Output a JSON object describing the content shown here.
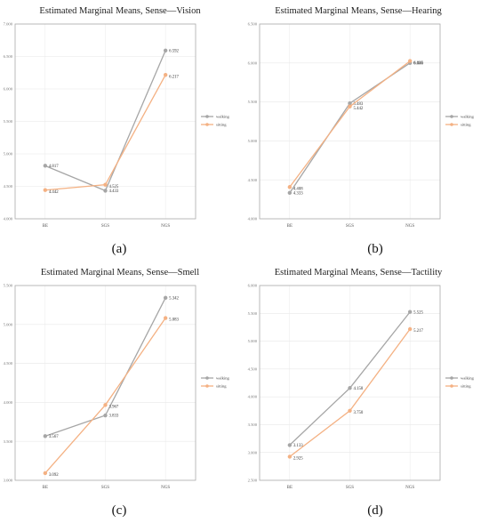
{
  "legend": {
    "series": [
      "walking",
      "sitting"
    ]
  },
  "colors": {
    "walking": "#a6a6a6",
    "sitting": "#f4b183",
    "frame": "#aaaaaa",
    "grid": "#e8e8e8"
  },
  "chart_data": [
    {
      "type": "line",
      "title": "Estimated Marginal Means, Sense—Vision",
      "caption": "(a)",
      "categories": [
        "BE",
        "SGS",
        "NGS"
      ],
      "ylim": [
        4.0,
        7.0
      ],
      "yticks": [
        "4.000",
        "4.500",
        "5.000",
        "5.500",
        "6.000",
        "6.500",
        "7.000"
      ],
      "grid": true,
      "legend_position": "right",
      "series": [
        {
          "name": "walking",
          "values": [
            4.817,
            4.433,
            6.592
          ],
          "labels": [
            "4.817",
            "4.433",
            "6.592"
          ]
        },
        {
          "name": "sitting",
          "values": [
            4.442,
            4.525,
            6.217
          ],
          "labels": [
            "4.442",
            "4.525",
            "6.217"
          ]
        }
      ]
    },
    {
      "type": "line",
      "title": "Estimated Marginal Means, Sense—Hearing",
      "caption": "(b)",
      "categories": [
        "BE",
        "SGS",
        "NGS"
      ],
      "ylim": [
        4.0,
        6.5
      ],
      "yticks": [
        "4.000",
        "4.500",
        "5.000",
        "5.500",
        "6.000",
        "6.500"
      ],
      "grid": true,
      "legend_position": "right",
      "series": [
        {
          "name": "walking",
          "values": [
            4.333,
            5.483,
            6.0
          ],
          "labels": [
            "4.333",
            "5.483",
            "6.000"
          ]
        },
        {
          "name": "sitting",
          "values": [
            4.408,
            5.442,
            6.025
          ],
          "labels": [
            "4.408",
            "5.442",
            "6.025"
          ]
        }
      ]
    },
    {
      "type": "line",
      "title": "Estimated Marginal Means, Sense—Smell",
      "caption": "(c)",
      "categories": [
        "BE",
        "SGS",
        "NGS"
      ],
      "ylim": [
        3.0,
        5.5
      ],
      "yticks": [
        "3.000",
        "3.500",
        "4.000",
        "4.500",
        "5.000",
        "5.500"
      ],
      "grid": true,
      "legend_position": "right",
      "series": [
        {
          "name": "walking",
          "values": [
            3.567,
            3.833,
            5.342
          ],
          "labels": [
            "3.567",
            "3.833",
            "5.342"
          ]
        },
        {
          "name": "sitting",
          "values": [
            3.092,
            3.967,
            5.083
          ],
          "labels": [
            "3.092",
            "3.967",
            "5.083"
          ]
        }
      ]
    },
    {
      "type": "line",
      "title": "Estimated Marginal Means, Sense—Tactility",
      "caption": "(d)",
      "categories": [
        "BE",
        "SGS",
        "NGS"
      ],
      "ylim": [
        2.5,
        6.0
      ],
      "yticks": [
        "2.500",
        "3.000",
        "3.500",
        "4.000",
        "4.500",
        "5.000",
        "5.500",
        "6.000"
      ],
      "grid": true,
      "legend_position": "right",
      "series": [
        {
          "name": "walking",
          "values": [
            3.133,
            4.158,
            5.525
          ],
          "labels": [
            "3.133",
            "4.158",
            "5.525"
          ]
        },
        {
          "name": "sitting",
          "values": [
            2.925,
            3.75,
            5.217
          ],
          "labels": [
            "2.925",
            "3.750",
            "5.217"
          ]
        }
      ]
    }
  ]
}
